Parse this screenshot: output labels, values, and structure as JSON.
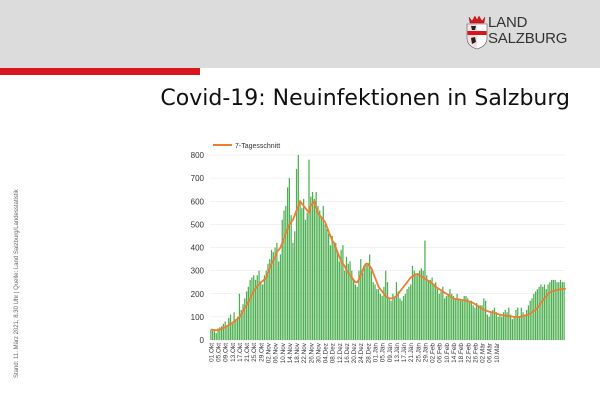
{
  "header": {
    "logo_line1": "LAND",
    "logo_line2": "SALZBURG",
    "title": "Covid-19: Neuinfektionen in Salzburg",
    "source": "Stand: 11. März 2021, 8.30 Uhr  |  Quelle: Land Salzburg/Landesstatistik",
    "colors": {
      "accent_red": "#d9161b",
      "band_grey": "#dcdcdc"
    }
  },
  "chart_data": {
    "type": "bar",
    "legend": "7-Tagesschnitt",
    "legend_placement": "top-left",
    "ylim": [
      0,
      800
    ],
    "yticks": [
      0,
      100,
      200,
      300,
      400,
      500,
      600,
      700,
      800
    ],
    "xtick_labels": [
      "01.Okt",
      "05.Okt",
      "09.Okt",
      "13.Okt",
      "17.Okt",
      "21.Okt",
      "25.Okt",
      "29.Okt",
      "02.Nov",
      "06.Nov",
      "10.Nov",
      "14.Nov",
      "18.Nov",
      "22.Nov",
      "26.Nov",
      "30.Nov",
      "04.Dez",
      "08.Dez",
      "12.Dez",
      "16.Dez",
      "20.Dez",
      "24.Dez",
      "28.Dez",
      "01.Jän",
      "05.Jän",
      "09.Jän",
      "13.Jän",
      "17.Jän",
      "21.Jän",
      "25.Jän",
      "29.Jän",
      "02.Feb",
      "06.Feb",
      "10.Feb",
      "14.Feb",
      "18.Feb",
      "22.Feb",
      "26.Feb",
      "02.Mär",
      "06.Mär",
      "10.Mär"
    ],
    "series": [
      {
        "kind": "bar",
        "color": "#4caf50",
        "values": [
          45,
          40,
          38,
          30,
          50,
          55,
          60,
          70,
          80,
          65,
          95,
          110,
          70,
          120,
          90,
          100,
          200,
          130,
          155,
          180,
          210,
          230,
          260,
          270,
          280,
          260,
          280,
          300,
          250,
          240,
          280,
          300,
          330,
          350,
          390,
          380,
          400,
          420,
          340,
          370,
          520,
          560,
          580,
          660,
          700,
          540,
          420,
          470,
          740,
          800,
          600,
          570,
          610,
          520,
          550,
          780,
          620,
          640,
          610,
          640,
          580,
          560,
          530,
          580,
          500,
          480,
          460,
          410,
          450,
          420,
          420,
          380,
          340,
          390,
          410,
          300,
          360,
          330,
          340,
          300,
          260,
          240,
          230,
          300,
          350,
          290,
          320,
          330,
          330,
          370,
          300,
          250,
          240,
          220,
          220,
          200,
          190,
          230,
          300,
          250,
          180,
          170,
          200,
          180,
          250,
          210,
          180,
          170,
          190,
          200,
          220,
          230,
          240,
          320,
          300,
          280,
          290,
          300,
          310,
          300,
          430,
          280,
          260,
          260,
          270,
          240,
          250,
          220,
          200,
          210,
          230,
          180,
          190,
          200,
          220,
          200,
          190,
          180,
          200,
          180,
          170,
          170,
          190,
          190,
          180,
          170,
          170,
          150,
          140,
          160,
          150,
          150,
          150,
          180,
          170,
          110,
          100,
          120,
          130,
          140,
          120,
          100,
          110,
          100,
          120,
          130,
          120,
          140,
          110,
          90,
          100,
          130,
          140,
          100,
          140,
          120,
          110,
          130,
          150,
          170,
          180,
          200,
          210,
          220,
          230,
          240,
          230,
          240,
          220,
          240,
          250,
          260,
          260,
          260,
          250,
          250,
          260,
          250,
          250
        ]
      },
      {
        "kind": "line",
        "name": "7-Tagesschnitt",
        "color": "#ed7d31",
        "values": [
          45,
          44,
          43,
          42,
          43,
          45,
          48,
          52,
          56,
          60,
          65,
          70,
          74,
          80,
          86,
          92,
          100,
          112,
          125,
          138,
          150,
          165,
          180,
          195,
          210,
          222,
          235,
          240,
          250,
          255,
          262,
          270,
          290,
          310,
          330,
          345,
          360,
          380,
          390,
          400,
          420,
          440,
          460,
          480,
          500,
          510,
          520,
          540,
          560,
          580,
          600,
          590,
          580,
          570,
          560,
          550,
          580,
          590,
          600,
          570,
          550,
          540,
          530,
          520,
          510,
          490,
          470,
          450,
          430,
          420,
          400,
          380,
          360,
          340,
          330,
          320,
          300,
          290,
          280,
          270,
          260,
          250,
          250,
          260,
          280,
          300,
          320,
          330,
          330,
          320,
          310,
          290,
          270,
          250,
          230,
          220,
          210,
          200,
          190,
          185,
          180,
          180,
          180,
          185,
          190,
          200,
          210,
          220,
          230,
          240,
          250,
          260,
          270,
          275,
          280,
          285,
          285,
          280,
          275,
          270,
          265,
          260,
          255,
          250,
          245,
          240,
          230,
          225,
          220,
          215,
          210,
          205,
          200,
          195,
          190,
          185,
          180,
          178,
          176,
          175,
          174,
          173,
          172,
          170,
          168,
          166,
          164,
          160,
          155,
          150,
          145,
          140,
          135,
          130,
          128,
          125,
          122,
          120,
          120,
          118,
          115,
          112,
          110,
          108,
          106,
          105,
          104,
          103,
          102,
          101,
          100,
          100,
          100,
          100,
          102,
          104,
          106,
          108,
          110,
          115,
          120,
          125,
          130,
          140,
          150,
          160,
          170,
          180,
          190,
          200,
          205,
          210,
          212,
          214,
          216,
          218,
          219,
          220,
          221,
          222
        ]
      }
    ]
  }
}
